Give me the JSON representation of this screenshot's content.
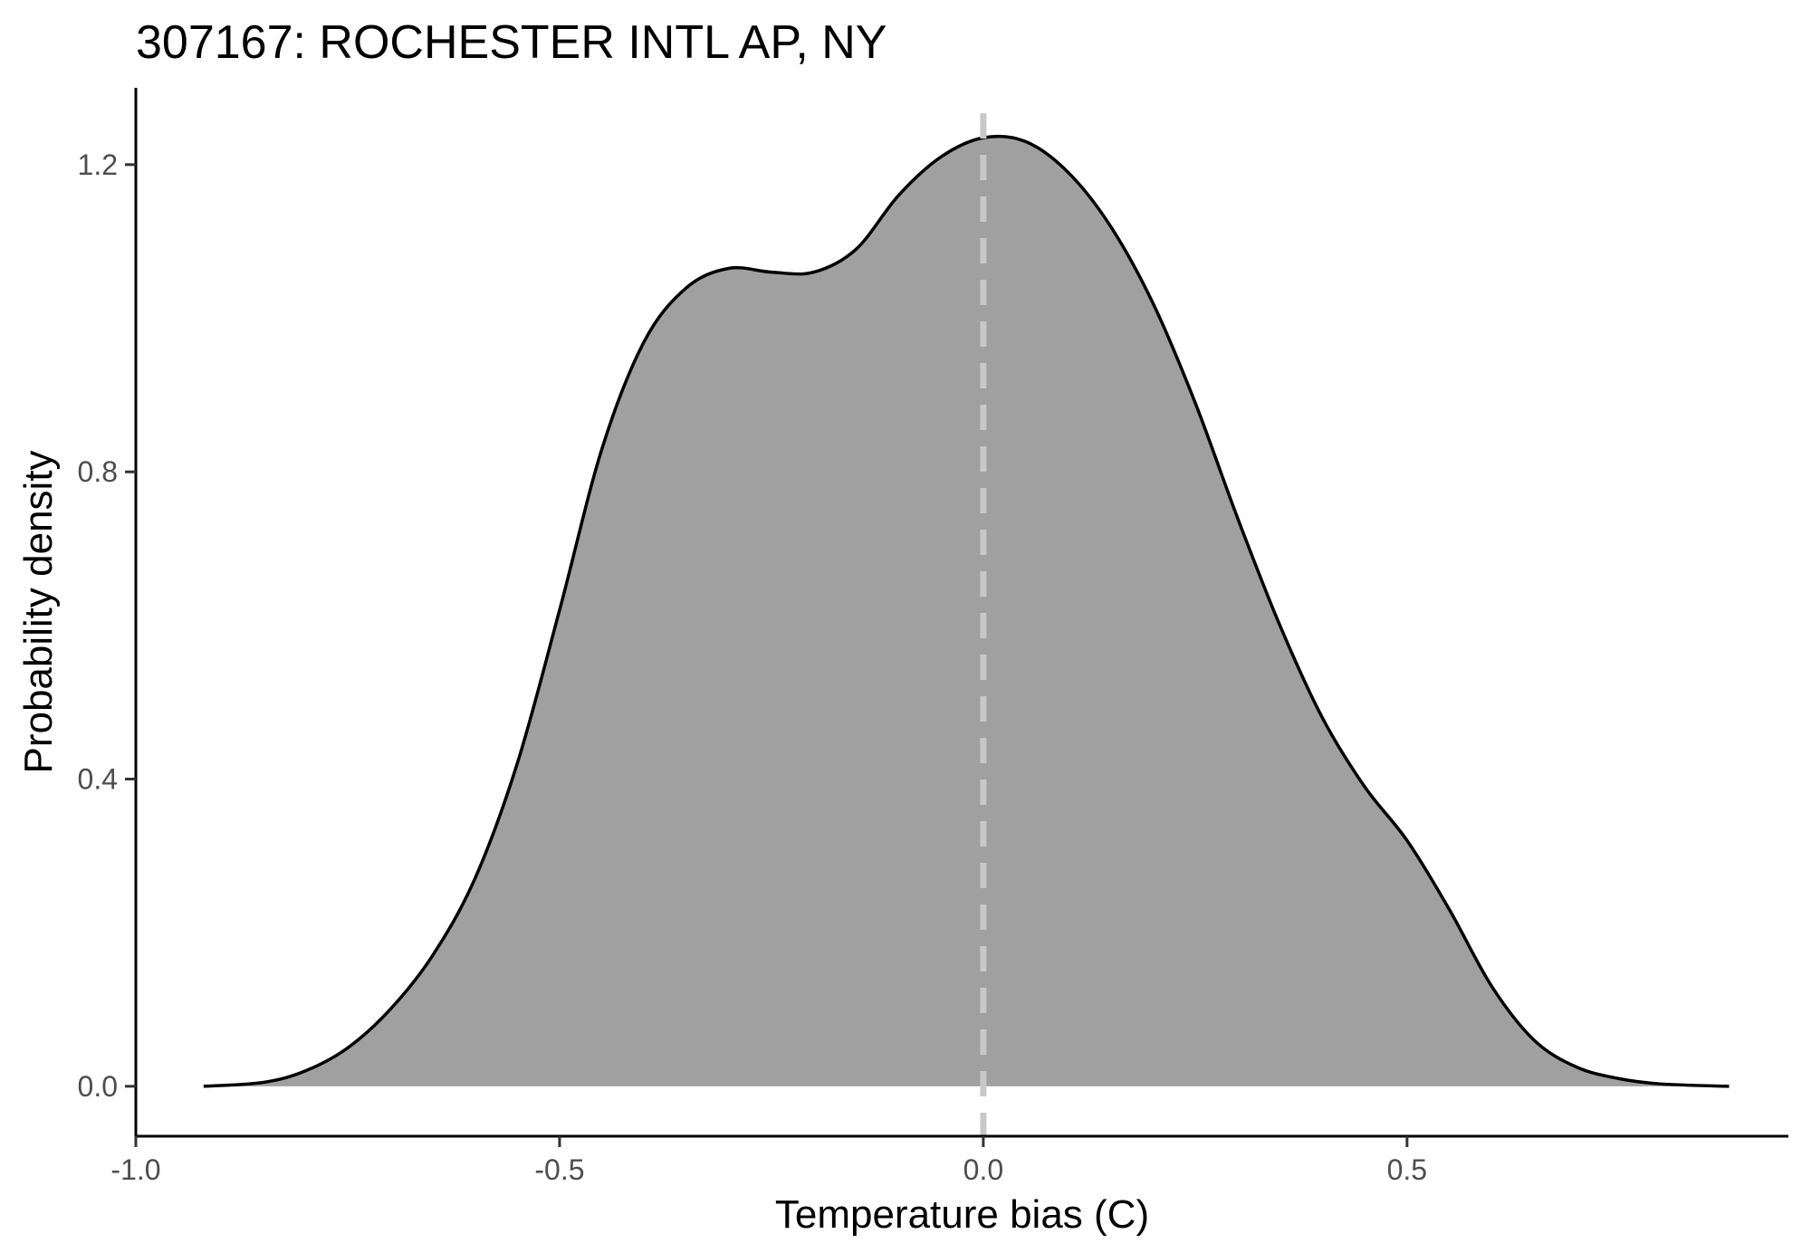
{
  "chart_data": {
    "type": "area",
    "title": "307167: ROCHESTER INTL AP, NY",
    "xlabel": "Temperature bias (C)",
    "ylabel": "Probability density",
    "xlim": [
      -1.0,
      0.95
    ],
    "ylim": [
      -0.065,
      1.3
    ],
    "x_ticks": [
      -1.0,
      -0.5,
      0.0,
      0.5
    ],
    "x_tick_labels": [
      "-1.0",
      "-0.5",
      "0.0",
      "0.5"
    ],
    "y_ticks": [
      0.0,
      0.4,
      0.8,
      1.2
    ],
    "y_tick_labels": [
      "0.0",
      "0.4",
      "0.8",
      "1.2"
    ],
    "grid": false,
    "fill_color": "#a0a0a0",
    "line_color": "#000000",
    "reference_line": {
      "x": 0.0,
      "style": "dashed",
      "color": "#c8c8c8"
    },
    "series": [
      {
        "x": [
          -0.92,
          -0.85,
          -0.8,
          -0.75,
          -0.7,
          -0.65,
          -0.6,
          -0.55,
          -0.5,
          -0.45,
          -0.4,
          -0.35,
          -0.3,
          -0.25,
          -0.2,
          -0.15,
          -0.1,
          -0.05,
          0.0,
          0.05,
          0.1,
          0.15,
          0.2,
          0.25,
          0.3,
          0.35,
          0.4,
          0.45,
          0.5,
          0.55,
          0.6,
          0.65,
          0.7,
          0.75,
          0.8,
          0.88
        ],
        "y": [
          0.0,
          0.005,
          0.02,
          0.05,
          0.1,
          0.17,
          0.27,
          0.42,
          0.62,
          0.83,
          0.97,
          1.04,
          1.065,
          1.06,
          1.06,
          1.09,
          1.16,
          1.21,
          1.235,
          1.23,
          1.19,
          1.12,
          1.02,
          0.89,
          0.74,
          0.6,
          0.48,
          0.39,
          0.32,
          0.23,
          0.13,
          0.06,
          0.025,
          0.01,
          0.003,
          0.0
        ]
      }
    ]
  }
}
